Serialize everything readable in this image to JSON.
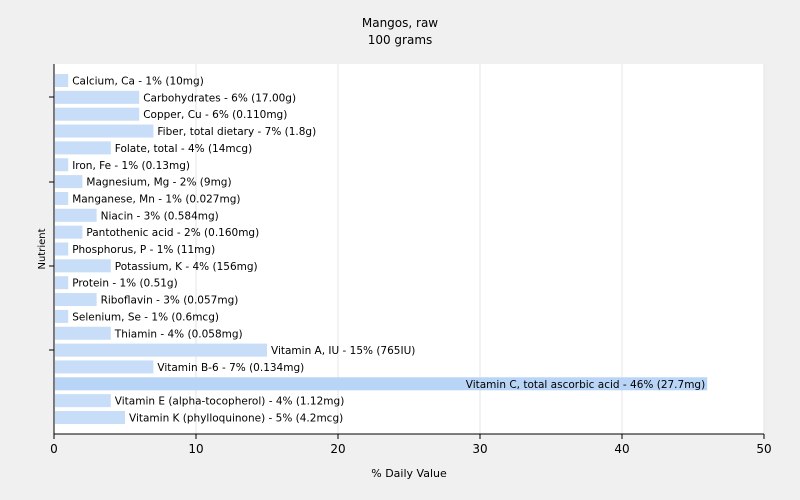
{
  "chart_data": {
    "type": "bar",
    "orientation": "horizontal",
    "title": "Mangos, raw",
    "subtitle": "100 grams",
    "xlabel": "% Daily Value",
    "ylabel": "Nutrient",
    "xlim": [
      0,
      50
    ],
    "xticks": [
      0,
      10,
      20,
      30,
      40,
      50
    ],
    "grid": "vertical",
    "bar_color": "#c7ddf8",
    "highlight_color": "#b8d4f6",
    "background_color": "#f0f0f0",
    "plot_background_color": "#ffffff",
    "categories": [
      "Calcium, Ca",
      "Carbohydrates",
      "Copper, Cu",
      "Fiber, total dietary",
      "Folate, total",
      "Iron, Fe",
      "Magnesium, Mg",
      "Manganese, Mn",
      "Niacin",
      "Pantothenic acid",
      "Phosphorus, P",
      "Potassium, K",
      "Protein",
      "Riboflavin",
      "Selenium, Se",
      "Thiamin",
      "Vitamin A, IU",
      "Vitamin B-6",
      "Vitamin C, total ascorbic acid",
      "Vitamin E (alpha-tocopherol)",
      "Vitamin K (phylloquinone)"
    ],
    "values": [
      1,
      6,
      6,
      7,
      4,
      1,
      2,
      1,
      3,
      2,
      1,
      4,
      1,
      3,
      1,
      4,
      15,
      7,
      46,
      4,
      5
    ],
    "labels": [
      "Calcium, Ca - 1% (10mg)",
      "Carbohydrates - 6% (17.00g)",
      "Copper, Cu - 6% (0.110mg)",
      "Fiber, total dietary - 7% (1.8g)",
      "Folate, total - 4% (14mcg)",
      "Iron, Fe - 1% (0.13mg)",
      "Magnesium, Mg - 2% (9mg)",
      "Manganese, Mn - 1% (0.027mg)",
      "Niacin - 3% (0.584mg)",
      "Pantothenic acid - 2% (0.160mg)",
      "Phosphorus, P - 1% (11mg)",
      "Potassium, K - 4% (156mg)",
      "Protein - 1% (0.51g)",
      "Riboflavin - 3% (0.057mg)",
      "Selenium, Se - 1% (0.6mcg)",
      "Thiamin - 4% (0.058mg)",
      "Vitamin A, IU - 15% (765IU)",
      "Vitamin B-6 - 7% (0.134mg)",
      "Vitamin C, total ascorbic acid - 46% (27.7mg)",
      "Vitamin E (alpha-tocopherol) - 4% (1.12mg)",
      "Vitamin K (phylloquinone) - 5% (4.2mcg)"
    ]
  }
}
